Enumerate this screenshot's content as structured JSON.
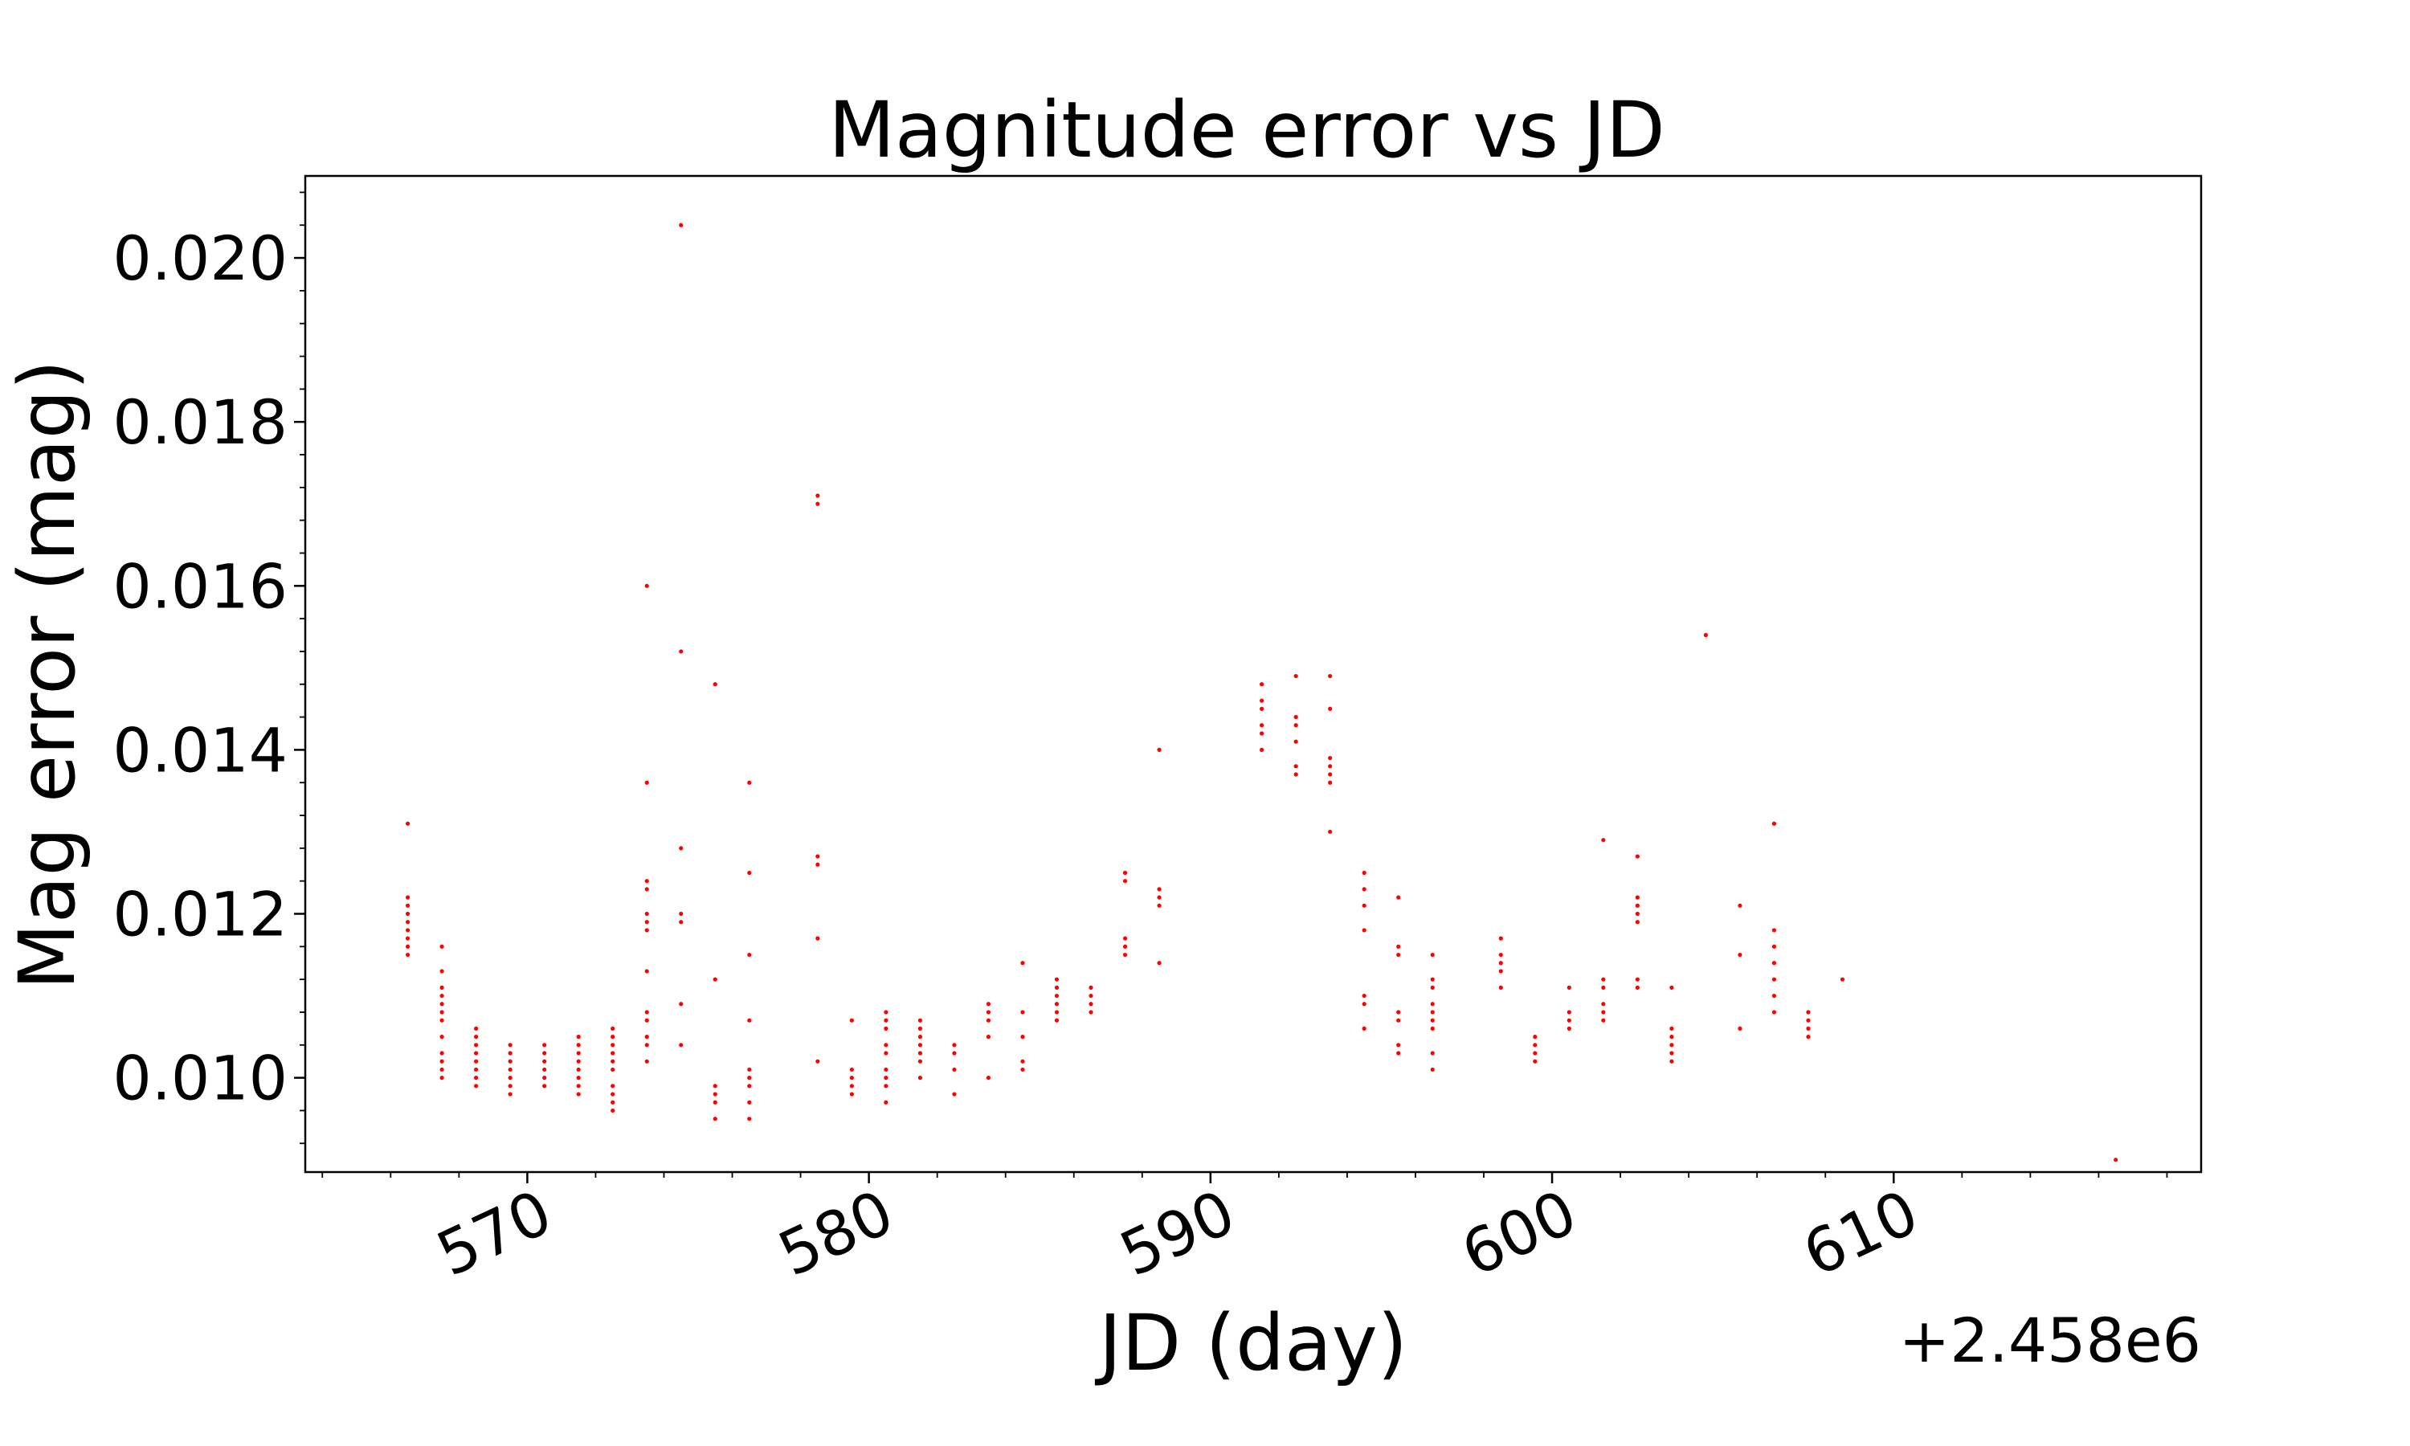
{
  "chart_data": {
    "type": "scatter",
    "title": "Magnitude error vs JD",
    "xlabel": "JD (day)",
    "ylabel": "Mag error (mag)",
    "x_offset_label": "+2.458e6",
    "xlim": [
      2458563.5,
      2458619.0
    ],
    "ylim": [
      0.00885,
      0.021
    ],
    "x_ticks": [
      2458570,
      2458580,
      2458590,
      2458600,
      2458610
    ],
    "x_tick_labels": [
      "570",
      "580",
      "590",
      "600",
      "610"
    ],
    "y_ticks": [
      0.01,
      0.012,
      0.014,
      0.016,
      0.018,
      0.02
    ],
    "y_tick_labels": [
      "0.010",
      "0.012",
      "0.014",
      "0.016",
      "0.018",
      "0.020"
    ],
    "marker_color": "#ff0000",
    "grid": false,
    "series": [
      {
        "points": [
          [
            2458566.5,
            0.0131
          ],
          [
            2458566.5,
            0.0122
          ],
          [
            2458566.5,
            0.0121
          ],
          [
            2458566.5,
            0.012
          ],
          [
            2458566.5,
            0.0119
          ],
          [
            2458566.5,
            0.0118
          ],
          [
            2458566.5,
            0.0117
          ],
          [
            2458566.5,
            0.0116
          ],
          [
            2458566.5,
            0.0115
          ],
          [
            2458567.5,
            0.0116
          ],
          [
            2458567.5,
            0.0113
          ],
          [
            2458567.5,
            0.0111
          ],
          [
            2458567.5,
            0.011
          ],
          [
            2458567.5,
            0.0109
          ],
          [
            2458567.5,
            0.0108
          ],
          [
            2458567.5,
            0.0107
          ],
          [
            2458567.5,
            0.0105
          ],
          [
            2458567.5,
            0.0103
          ],
          [
            2458567.5,
            0.0102
          ],
          [
            2458567.5,
            0.0101
          ],
          [
            2458567.5,
            0.01
          ],
          [
            2458568.5,
            0.0106
          ],
          [
            2458568.5,
            0.0105
          ],
          [
            2458568.5,
            0.0104
          ],
          [
            2458568.5,
            0.0103
          ],
          [
            2458568.5,
            0.0102
          ],
          [
            2458568.5,
            0.0101
          ],
          [
            2458568.5,
            0.01
          ],
          [
            2458568.5,
            0.0099
          ],
          [
            2458569.5,
            0.0104
          ],
          [
            2458569.5,
            0.0103
          ],
          [
            2458569.5,
            0.0102
          ],
          [
            2458569.5,
            0.0101
          ],
          [
            2458569.5,
            0.01
          ],
          [
            2458569.5,
            0.0099
          ],
          [
            2458569.5,
            0.0098
          ],
          [
            2458570.5,
            0.0104
          ],
          [
            2458570.5,
            0.0103
          ],
          [
            2458570.5,
            0.0102
          ],
          [
            2458570.5,
            0.0101
          ],
          [
            2458570.5,
            0.01
          ],
          [
            2458570.5,
            0.0099
          ],
          [
            2458571.5,
            0.0105
          ],
          [
            2458571.5,
            0.0104
          ],
          [
            2458571.5,
            0.0103
          ],
          [
            2458571.5,
            0.0102
          ],
          [
            2458571.5,
            0.0101
          ],
          [
            2458571.5,
            0.01
          ],
          [
            2458571.5,
            0.0099
          ],
          [
            2458571.5,
            0.0098
          ],
          [
            2458572.5,
            0.0106
          ],
          [
            2458572.5,
            0.0105
          ],
          [
            2458572.5,
            0.0104
          ],
          [
            2458572.5,
            0.0103
          ],
          [
            2458572.5,
            0.0102
          ],
          [
            2458572.5,
            0.0101
          ],
          [
            2458572.5,
            0.0099
          ],
          [
            2458572.5,
            0.0098
          ],
          [
            2458572.5,
            0.0097
          ],
          [
            2458572.5,
            0.0096
          ],
          [
            2458573.5,
            0.016
          ],
          [
            2458573.5,
            0.0136
          ],
          [
            2458573.5,
            0.0124
          ],
          [
            2458573.5,
            0.0123
          ],
          [
            2458573.5,
            0.012
          ],
          [
            2458573.5,
            0.0119
          ],
          [
            2458573.5,
            0.0118
          ],
          [
            2458573.5,
            0.0113
          ],
          [
            2458573.5,
            0.0108
          ],
          [
            2458573.5,
            0.0107
          ],
          [
            2458573.5,
            0.0105
          ],
          [
            2458573.5,
            0.0104
          ],
          [
            2458573.5,
            0.0102
          ],
          [
            2458574.5,
            0.0204
          ],
          [
            2458574.5,
            0.0152
          ],
          [
            2458574.5,
            0.0128
          ],
          [
            2458574.5,
            0.012
          ],
          [
            2458574.5,
            0.0119
          ],
          [
            2458574.5,
            0.0109
          ],
          [
            2458574.5,
            0.0104
          ],
          [
            2458575.5,
            0.0148
          ],
          [
            2458575.5,
            0.0112
          ],
          [
            2458575.5,
            0.0099
          ],
          [
            2458575.5,
            0.0098
          ],
          [
            2458575.5,
            0.0097
          ],
          [
            2458575.5,
            0.0095
          ],
          [
            2458576.5,
            0.0136
          ],
          [
            2458576.5,
            0.0125
          ],
          [
            2458576.5,
            0.0115
          ],
          [
            2458576.5,
            0.0107
          ],
          [
            2458576.5,
            0.0101
          ],
          [
            2458576.5,
            0.01
          ],
          [
            2458576.5,
            0.0099
          ],
          [
            2458576.5,
            0.0097
          ],
          [
            2458576.5,
            0.0095
          ],
          [
            2458578.5,
            0.0171
          ],
          [
            2458578.5,
            0.017
          ],
          [
            2458578.5,
            0.0127
          ],
          [
            2458578.5,
            0.0126
          ],
          [
            2458578.5,
            0.0117
          ],
          [
            2458578.5,
            0.0102
          ],
          [
            2458579.5,
            0.0107
          ],
          [
            2458579.5,
            0.0101
          ],
          [
            2458579.5,
            0.01
          ],
          [
            2458579.5,
            0.0099
          ],
          [
            2458579.5,
            0.0098
          ],
          [
            2458580.5,
            0.0108
          ],
          [
            2458580.5,
            0.0107
          ],
          [
            2458580.5,
            0.0106
          ],
          [
            2458580.5,
            0.0104
          ],
          [
            2458580.5,
            0.0103
          ],
          [
            2458580.5,
            0.0101
          ],
          [
            2458580.5,
            0.01
          ],
          [
            2458580.5,
            0.0099
          ],
          [
            2458580.5,
            0.0097
          ],
          [
            2458581.5,
            0.0107
          ],
          [
            2458581.5,
            0.0106
          ],
          [
            2458581.5,
            0.0105
          ],
          [
            2458581.5,
            0.0104
          ],
          [
            2458581.5,
            0.0103
          ],
          [
            2458581.5,
            0.0102
          ],
          [
            2458581.5,
            0.01
          ],
          [
            2458582.5,
            0.0104
          ],
          [
            2458582.5,
            0.0103
          ],
          [
            2458582.5,
            0.0101
          ],
          [
            2458582.5,
            0.0098
          ],
          [
            2458583.5,
            0.0109
          ],
          [
            2458583.5,
            0.0108
          ],
          [
            2458583.5,
            0.0107
          ],
          [
            2458583.5,
            0.0105
          ],
          [
            2458583.5,
            0.01
          ],
          [
            2458584.5,
            0.0114
          ],
          [
            2458584.5,
            0.0108
          ],
          [
            2458584.5,
            0.0105
          ],
          [
            2458584.5,
            0.0102
          ],
          [
            2458584.5,
            0.0101
          ],
          [
            2458585.5,
            0.0112
          ],
          [
            2458585.5,
            0.0111
          ],
          [
            2458585.5,
            0.011
          ],
          [
            2458585.5,
            0.0109
          ],
          [
            2458585.5,
            0.0108
          ],
          [
            2458585.5,
            0.0107
          ],
          [
            2458586.5,
            0.0111
          ],
          [
            2458586.5,
            0.011
          ],
          [
            2458586.5,
            0.0109
          ],
          [
            2458586.5,
            0.0108
          ],
          [
            2458587.5,
            0.0125
          ],
          [
            2458587.5,
            0.0124
          ],
          [
            2458587.5,
            0.0117
          ],
          [
            2458587.5,
            0.0116
          ],
          [
            2458587.5,
            0.0115
          ],
          [
            2458588.5,
            0.014
          ],
          [
            2458588.5,
            0.0123
          ],
          [
            2458588.5,
            0.0122
          ],
          [
            2458588.5,
            0.0121
          ],
          [
            2458588.5,
            0.0114
          ],
          [
            2458591.5,
            0.0148
          ],
          [
            2458591.5,
            0.0146
          ],
          [
            2458591.5,
            0.0145
          ],
          [
            2458591.5,
            0.0143
          ],
          [
            2458591.5,
            0.0142
          ],
          [
            2458591.5,
            0.014
          ],
          [
            2458592.5,
            0.0149
          ],
          [
            2458592.5,
            0.0144
          ],
          [
            2458592.5,
            0.0143
          ],
          [
            2458592.5,
            0.0141
          ],
          [
            2458592.5,
            0.0138
          ],
          [
            2458592.5,
            0.0137
          ],
          [
            2458593.5,
            0.0149
          ],
          [
            2458593.5,
            0.0145
          ],
          [
            2458593.5,
            0.0139
          ],
          [
            2458593.5,
            0.0138
          ],
          [
            2458593.5,
            0.0137
          ],
          [
            2458593.5,
            0.0136
          ],
          [
            2458593.5,
            0.013
          ],
          [
            2458594.5,
            0.0125
          ],
          [
            2458594.5,
            0.0123
          ],
          [
            2458594.5,
            0.0121
          ],
          [
            2458594.5,
            0.0118
          ],
          [
            2458594.5,
            0.011
          ],
          [
            2458594.5,
            0.0109
          ],
          [
            2458594.5,
            0.0106
          ],
          [
            2458595.5,
            0.0122
          ],
          [
            2458595.5,
            0.0116
          ],
          [
            2458595.5,
            0.0115
          ],
          [
            2458595.5,
            0.0108
          ],
          [
            2458595.5,
            0.0107
          ],
          [
            2458595.5,
            0.0104
          ],
          [
            2458595.5,
            0.0103
          ],
          [
            2458596.5,
            0.0115
          ],
          [
            2458596.5,
            0.0112
          ],
          [
            2458596.5,
            0.0111
          ],
          [
            2458596.5,
            0.0109
          ],
          [
            2458596.5,
            0.0108
          ],
          [
            2458596.5,
            0.0107
          ],
          [
            2458596.5,
            0.0106
          ],
          [
            2458596.5,
            0.0103
          ],
          [
            2458596.5,
            0.0101
          ],
          [
            2458598.5,
            0.0117
          ],
          [
            2458598.5,
            0.0115
          ],
          [
            2458598.5,
            0.0114
          ],
          [
            2458598.5,
            0.0113
          ],
          [
            2458598.5,
            0.0111
          ],
          [
            2458599.5,
            0.0105
          ],
          [
            2458599.5,
            0.0104
          ],
          [
            2458599.5,
            0.0103
          ],
          [
            2458599.5,
            0.0102
          ],
          [
            2458600.5,
            0.0111
          ],
          [
            2458600.5,
            0.0108
          ],
          [
            2458600.5,
            0.0107
          ],
          [
            2458600.5,
            0.0106
          ],
          [
            2458601.5,
            0.0129
          ],
          [
            2458601.5,
            0.0112
          ],
          [
            2458601.5,
            0.0111
          ],
          [
            2458601.5,
            0.0109
          ],
          [
            2458601.5,
            0.0108
          ],
          [
            2458601.5,
            0.0107
          ],
          [
            2458602.5,
            0.0127
          ],
          [
            2458602.5,
            0.0122
          ],
          [
            2458602.5,
            0.0121
          ],
          [
            2458602.5,
            0.012
          ],
          [
            2458602.5,
            0.0119
          ],
          [
            2458602.5,
            0.0112
          ],
          [
            2458602.5,
            0.0111
          ],
          [
            2458603.5,
            0.0111
          ],
          [
            2458603.5,
            0.0106
          ],
          [
            2458603.5,
            0.0105
          ],
          [
            2458603.5,
            0.0104
          ],
          [
            2458603.5,
            0.0103
          ],
          [
            2458603.5,
            0.0102
          ],
          [
            2458604.5,
            0.0154
          ],
          [
            2458605.5,
            0.0121
          ],
          [
            2458605.5,
            0.0115
          ],
          [
            2458605.5,
            0.0106
          ],
          [
            2458606.5,
            0.0131
          ],
          [
            2458606.5,
            0.0118
          ],
          [
            2458606.5,
            0.0116
          ],
          [
            2458606.5,
            0.0114
          ],
          [
            2458606.5,
            0.0112
          ],
          [
            2458606.5,
            0.011
          ],
          [
            2458606.5,
            0.0108
          ],
          [
            2458607.5,
            0.0108
          ],
          [
            2458607.5,
            0.0107
          ],
          [
            2458607.5,
            0.0106
          ],
          [
            2458607.5,
            0.0105
          ],
          [
            2458608.5,
            0.0112
          ],
          [
            2458616.5,
            0.009
          ]
        ]
      }
    ]
  }
}
